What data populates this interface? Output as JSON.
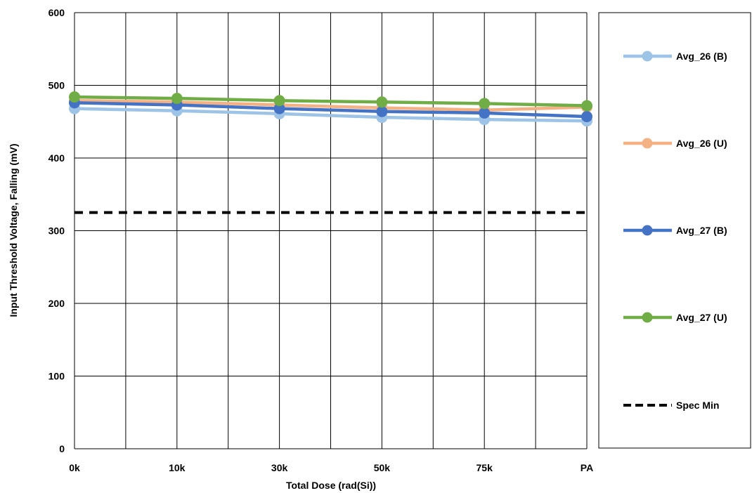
{
  "chart_data": {
    "type": "line",
    "title": "",
    "xlabel": "Total Dose (rad(Si))",
    "ylabel": "Input Threshold Voltage, Falling (mV)",
    "categories": [
      "0k",
      "10k",
      "30k",
      "50k",
      "75k",
      "PA"
    ],
    "ylim": [
      0,
      600
    ],
    "yticks": [
      "0",
      "100",
      "200",
      "300",
      "400",
      "500",
      "600"
    ],
    "grid": true,
    "legend_position": "right",
    "series": [
      {
        "name": "Avg_26 (B)",
        "color": "#9dc3e6",
        "marker": "circle",
        "style": "solid",
        "values": [
          468,
          465,
          461,
          456,
          453,
          451
        ]
      },
      {
        "name": "Avg_26 (U)",
        "color": "#f4b183",
        "marker": "circle",
        "style": "solid",
        "values": [
          479,
          477,
          473,
          469,
          466,
          470
        ]
      },
      {
        "name": "Avg_27 (B)",
        "color": "#4472c4",
        "marker": "circle",
        "style": "solid",
        "values": [
          476,
          473,
          468,
          464,
          462,
          457
        ]
      },
      {
        "name": "Avg_27 (U)",
        "color": "#70ad47",
        "marker": "circle",
        "style": "solid",
        "values": [
          484,
          482,
          479,
          477,
          475,
          472
        ]
      },
      {
        "name": "Spec Min",
        "color": "#000000",
        "marker": "none",
        "style": "dashed",
        "values": [
          325,
          325,
          325,
          325,
          325,
          325
        ]
      }
    ]
  }
}
